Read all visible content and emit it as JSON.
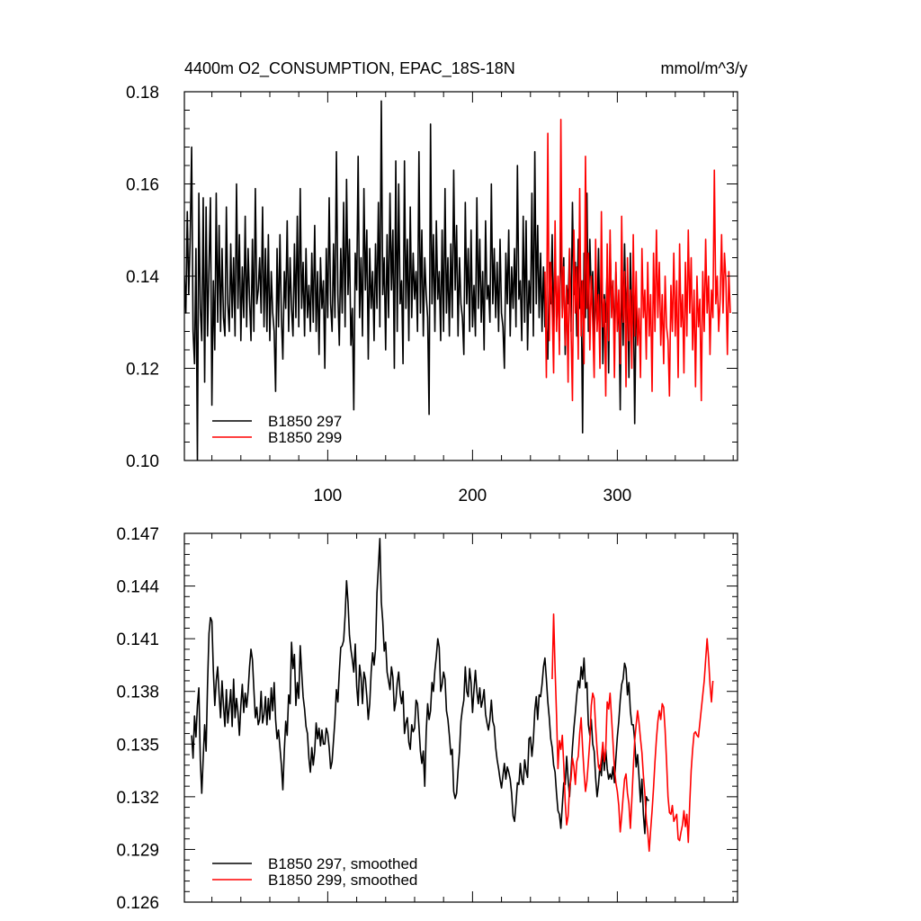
{
  "title": {
    "left": "4400m O2_CONSUMPTION, EPAC_18S-18N",
    "right": "mmol/m^3/y"
  },
  "colors": {
    "run_297": "#000000",
    "run_299": "#ff0000"
  },
  "chart_data": [
    {
      "type": "line",
      "xlim": [
        1,
        383
      ],
      "ylim": [
        0.1,
        0.18
      ],
      "yticks": [
        "0.10",
        "0.12",
        "0.14",
        "0.16",
        "0.18"
      ],
      "xticks": [
        "100",
        "200",
        "300"
      ],
      "legend_position": "bottom-left",
      "series": [
        {
          "name": "B1850 297",
          "color": "#000000",
          "x_start": 1,
          "values": [
            0.14,
            0.132,
            0.154,
            0.136,
            0.148,
            0.168,
            0.128,
            0.121,
            0.146,
            0.1,
            0.158,
            0.133,
            0.126,
            0.157,
            0.117,
            0.155,
            0.127,
            0.142,
            0.157,
            0.112,
            0.139,
            0.124,
            0.158,
            0.13,
            0.151,
            0.128,
            0.146,
            0.131,
            0.127,
            0.155,
            0.134,
            0.128,
            0.147,
            0.131,
            0.144,
            0.127,
            0.16,
            0.133,
            0.149,
            0.126,
            0.142,
            0.131,
            0.153,
            0.129,
            0.146,
            0.135,
            0.126,
            0.148,
            0.128,
            0.159,
            0.134,
            0.137,
            0.144,
            0.132,
            0.155,
            0.129,
            0.146,
            0.128,
            0.149,
            0.126,
            0.141,
            0.132,
            0.128,
            0.115,
            0.146,
            0.129,
            0.149,
            0.131,
            0.122,
            0.141,
            0.133,
            0.152,
            0.128,
            0.144,
            0.133,
            0.127,
            0.147,
            0.131,
            0.153,
            0.129,
            0.159,
            0.133,
            0.143,
            0.127,
            0.146,
            0.131,
            0.138,
            0.128,
            0.145,
            0.13,
            0.151,
            0.128,
            0.141,
            0.123,
            0.144,
            0.133,
            0.139,
            0.12,
            0.146,
            0.131,
            0.157,
            0.134,
            0.128,
            0.147,
            0.131,
            0.167,
            0.136,
            0.125,
            0.146,
            0.132,
            0.156,
            0.129,
            0.161,
            0.136,
            0.148,
            0.125,
            0.133,
            0.111,
            0.145,
            0.137,
            0.166,
            0.131,
            0.144,
            0.127,
            0.159,
            0.137,
            0.15,
            0.122,
            0.146,
            0.133,
            0.141,
            0.126,
            0.147,
            0.133,
            0.156,
            0.129,
            0.178,
            0.136,
            0.144,
            0.124,
            0.149,
            0.131,
            0.158,
            0.137,
            0.15,
            0.12,
            0.165,
            0.128,
            0.16,
            0.134,
            0.139,
            0.121,
            0.165,
            0.133,
            0.148,
            0.126,
            0.155,
            0.131,
            0.145,
            0.135,
            0.141,
            0.128,
            0.167,
            0.132,
            0.15,
            0.127,
            0.144,
            0.136,
            0.131,
            0.11,
            0.173,
            0.134,
            0.149,
            0.128,
            0.152,
            0.135,
            0.141,
            0.126,
            0.15,
            0.128,
            0.159,
            0.132,
            0.144,
            0.127,
            0.147,
            0.131,
            0.163,
            0.137,
            0.151,
            0.127,
            0.144,
            0.134,
            0.131,
            0.123,
            0.156,
            0.134,
            0.146,
            0.128,
            0.15,
            0.129,
            0.138,
            0.127,
            0.157,
            0.133,
            0.148,
            0.13,
            0.141,
            0.124,
            0.152,
            0.135,
            0.138,
            0.13,
            0.16,
            0.134,
            0.146,
            0.131,
            0.143,
            0.128,
            0.148,
            0.132,
            0.129,
            0.12,
            0.145,
            0.134,
            0.15,
            0.127,
            0.142,
            0.133,
            0.146,
            0.129,
            0.164,
            0.135,
            0.139,
            0.126,
            0.153,
            0.13,
            0.152,
            0.124,
            0.139,
            0.132,
            0.158,
            0.127,
            0.167,
            0.134,
            0.151,
            0.131,
            0.145,
            0.128,
            0.142,
            0.129,
            0.13,
            0.122,
            0.143,
            0.134,
            0.149,
            0.127,
            0.146,
            0.131,
            0.137,
            0.126,
            0.152,
            0.133,
            0.144,
            0.123,
            0.138,
            0.134,
            0.146,
            0.128,
            0.156,
            0.136,
            0.143,
            0.127,
            0.148,
            0.133,
            0.139,
            0.106,
            0.145,
            0.131,
            0.158,
            0.128,
            0.148,
            0.136,
            0.141,
            0.125,
            0.137,
            0.13,
            0.146,
            0.127,
            0.144,
            0.121,
            0.136,
            0.13,
            0.142,
            0.119,
            0.147,
            0.134,
            0.139,
            0.125,
            0.141,
            0.131,
            0.135,
            0.111,
            0.143,
            0.125,
            0.147,
            0.13,
            0.14,
            0.118,
            0.145,
            0.127,
            0.138,
            0.108,
            0.134,
            0.128
          ]
        },
        {
          "name": "B1850 299",
          "color": "#ff0000",
          "x_start": 250,
          "values": [
            0.141,
            0.118,
            0.171,
            0.126,
            0.143,
            0.133,
            0.119,
            0.152,
            0.128,
            0.14,
            0.123,
            0.174,
            0.131,
            0.142,
            0.125,
            0.138,
            0.117,
            0.146,
            0.129,
            0.113,
            0.15,
            0.132,
            0.142,
            0.122,
            0.159,
            0.127,
            0.139,
            0.121,
            0.166,
            0.133,
            0.145,
            0.124,
            0.14,
            0.13,
            0.118,
            0.148,
            0.128,
            0.136,
            0.12,
            0.154,
            0.129,
            0.135,
            0.114,
            0.147,
            0.126,
            0.15,
            0.131,
            0.139,
            0.118,
            0.143,
            0.128,
            0.137,
            0.121,
            0.153,
            0.13,
            0.141,
            0.116,
            0.144,
            0.126,
            0.137,
            0.12,
            0.149,
            0.127,
            0.141,
            0.125,
            0.133,
            0.118,
            0.146,
            0.131,
            0.137,
            0.122,
            0.143,
            0.127,
            0.136,
            0.115,
            0.145,
            0.128,
            0.15,
            0.131,
            0.143,
            0.125,
            0.136,
            0.121,
            0.14,
            0.129,
            0.126,
            0.114,
            0.138,
            0.128,
            0.145,
            0.127,
            0.139,
            0.118,
            0.147,
            0.129,
            0.136,
            0.119,
            0.143,
            0.127,
            0.15,
            0.132,
            0.144,
            0.124,
            0.137,
            0.116,
            0.14,
            0.129,
            0.135,
            0.113,
            0.141,
            0.128,
            0.148,
            0.132,
            0.14,
            0.123,
            0.137,
            0.131,
            0.163,
            0.134,
            0.14,
            0.128,
            0.135,
            0.149,
            0.132,
            0.145,
            0.139,
            0.123,
            0.141,
            0.132
          ]
        }
      ]
    },
    {
      "type": "line",
      "xlim": [
        1,
        383
      ],
      "ylim": [
        0.126,
        0.147
      ],
      "yticks": [
        "0.126",
        "0.129",
        "0.132",
        "0.135",
        "0.138",
        "0.141",
        "0.144",
        "0.147"
      ],
      "xticks": [],
      "legend_position": "bottom-left",
      "series": [
        {
          "name": "B1850 297, smoothed",
          "color": "#000000",
          "x_start": 6,
          "values": [
            0.1355,
            0.1342,
            0.1366,
            0.1354,
            0.1372,
            0.1382,
            0.1341,
            0.1322,
            0.1342,
            0.1361,
            0.1346,
            0.1384,
            0.1413,
            0.1422,
            0.142,
            0.1392,
            0.1372,
            0.1386,
            0.1394,
            0.1378,
            0.1365,
            0.1386,
            0.1372,
            0.136,
            0.1381,
            0.1362,
            0.1371,
            0.1381,
            0.136,
            0.1387,
            0.1365,
            0.1376,
            0.1368,
            0.1355,
            0.1372,
            0.1384,
            0.1368,
            0.1379,
            0.1371,
            0.138,
            0.1394,
            0.1404,
            0.1398,
            0.1381,
            0.1365,
            0.1371,
            0.1361,
            0.1364,
            0.138,
            0.1362,
            0.1367,
            0.1377,
            0.1361,
            0.1376,
            0.1364,
            0.1382,
            0.1369,
            0.1385,
            0.1364,
            0.1353,
            0.1358,
            0.1348,
            0.1338,
            0.1324,
            0.1346,
            0.1363,
            0.1355,
            0.1378,
            0.1373,
            0.1408,
            0.1393,
            0.1401,
            0.1372,
            0.1385,
            0.1376,
            0.1406,
            0.1391,
            0.1377,
            0.137,
            0.136,
            0.1356,
            0.1342,
            0.1334,
            0.1348,
            0.1338,
            0.1346,
            0.1362,
            0.1353,
            0.1359,
            0.1349,
            0.1358,
            0.135,
            0.135,
            0.1359,
            0.1356,
            0.1348,
            0.1336,
            0.134,
            0.1352,
            0.1364,
            0.1381,
            0.1374,
            0.1391,
            0.1405,
            0.1406,
            0.1409,
            0.1423,
            0.1443,
            0.1431,
            0.1412,
            0.1404,
            0.1398,
            0.1391,
            0.1407,
            0.1383,
            0.1372,
            0.1395,
            0.1388,
            0.1373,
            0.1391,
            0.1387,
            0.1377,
            0.1364,
            0.1373,
            0.1391,
            0.1402,
            0.1395,
            0.1404,
            0.1436,
            0.1451,
            0.1467,
            0.1431,
            0.142,
            0.1403,
            0.1408,
            0.1391,
            0.1386,
            0.1381,
            0.1394,
            0.1388,
            0.1369,
            0.1374,
            0.1385,
            0.1391,
            0.1379,
            0.1373,
            0.138,
            0.1356,
            0.1362,
            0.1365,
            0.1351,
            0.1347,
            0.1361,
            0.1357,
            0.1359,
            0.1375,
            0.1373,
            0.136,
            0.1346,
            0.1339,
            0.1346,
            0.1326,
            0.1357,
            0.1373,
            0.1364,
            0.1369,
            0.1385,
            0.138,
            0.1392,
            0.14,
            0.141,
            0.1405,
            0.138,
            0.1384,
            0.1391,
            0.1387,
            0.1369,
            0.1364,
            0.1355,
            0.1344,
            0.1347,
            0.1323,
            0.1319,
            0.1322,
            0.1335,
            0.1346,
            0.1363,
            0.137,
            0.1375,
            0.1394,
            0.138,
            0.1377,
            0.1393,
            0.1385,
            0.1368,
            0.1381,
            0.1392,
            0.138,
            0.1373,
            0.1382,
            0.1371,
            0.1375,
            0.1381,
            0.1367,
            0.1362,
            0.1358,
            0.1364,
            0.1375,
            0.1363,
            0.136,
            0.1348,
            0.1341,
            0.1336,
            0.133,
            0.1325,
            0.1332,
            0.1339,
            0.133,
            0.1337,
            0.1334,
            0.133,
            0.1322,
            0.1309,
            0.1306,
            0.1316,
            0.1328,
            0.1327,
            0.1339,
            0.133,
            0.1327,
            0.1341,
            0.1335,
            0.1331,
            0.1353,
            0.1354,
            0.1343,
            0.1352,
            0.1369,
            0.1377,
            0.1364,
            0.1378,
            0.1377,
            0.1384,
            0.1394,
            0.1399,
            0.1387,
            0.1374,
            0.1365,
            0.1353,
            0.1348,
            0.1338,
            0.1334,
            0.1322,
            0.1312,
            0.131,
            0.1302,
            0.1315,
            0.1328,
            0.1327,
            0.1343,
            0.133,
            0.132,
            0.1334,
            0.1348,
            0.1359,
            0.1368,
            0.1378,
            0.1386,
            0.1382,
            0.1394,
            0.1387,
            0.1399,
            0.1382,
            0.1385,
            0.1361,
            0.1355,
            0.1364,
            0.135,
            0.1346,
            0.1331,
            0.132,
            0.1327,
            0.1338,
            0.1332,
            0.1348,
            0.1335,
            0.1347,
            0.1336,
            0.133,
            0.1333,
            0.133,
            0.1337,
            0.1328,
            0.1342,
            0.1354,
            0.1363,
            0.1375,
            0.1384,
            0.1387,
            0.1396,
            0.1393,
            0.1378,
            0.1385,
            0.1369,
            0.1361,
            0.1361,
            0.1352,
            0.1337,
            0.1344,
            0.1331,
            0.1317,
            0.133,
            0.131,
            0.1299,
            0.132,
            0.1318,
            0.1318
          ]
        },
        {
          "name": "B1850 299, smoothed",
          "color": "#ff0000",
          "x_start": 255,
          "values": [
            0.1387,
            0.1424,
            0.1393,
            0.1367,
            0.1336,
            0.1352,
            0.1347,
            0.1355,
            0.1338,
            0.1317,
            0.1304,
            0.1309,
            0.1325,
            0.133,
            0.1342,
            0.1337,
            0.1327,
            0.134,
            0.1343,
            0.1356,
            0.1365,
            0.1348,
            0.1334,
            0.1323,
            0.1329,
            0.134,
            0.1352,
            0.1372,
            0.1379,
            0.1376,
            0.136,
            0.1347,
            0.1337,
            0.1335,
            0.1342,
            0.1351,
            0.134,
            0.1347,
            0.1374,
            0.137,
            0.1379,
            0.1365,
            0.1351,
            0.1336,
            0.1328,
            0.1323,
            0.1315,
            0.13,
            0.1309,
            0.132,
            0.133,
            0.1333,
            0.1322,
            0.1316,
            0.1302,
            0.1318,
            0.1336,
            0.1352,
            0.1361,
            0.1369,
            0.1362,
            0.1353,
            0.1345,
            0.1332,
            0.1322,
            0.1307,
            0.13,
            0.1289,
            0.1301,
            0.1312,
            0.1325,
            0.134,
            0.1353,
            0.1363,
            0.1369,
            0.1364,
            0.1373,
            0.1371,
            0.1358,
            0.134,
            0.132,
            0.1311,
            0.131,
            0.1315,
            0.1306,
            0.1308,
            0.131,
            0.1296,
            0.1295,
            0.13,
            0.1304,
            0.1312,
            0.1303,
            0.131,
            0.1294,
            0.1316,
            0.1335,
            0.1347,
            0.1356,
            0.1357,
            0.1355,
            0.1354,
            0.1362,
            0.137,
            0.1378,
            0.1386,
            0.1398,
            0.141,
            0.1399,
            0.1384,
            0.1374,
            0.1386
          ]
        }
      ]
    }
  ]
}
